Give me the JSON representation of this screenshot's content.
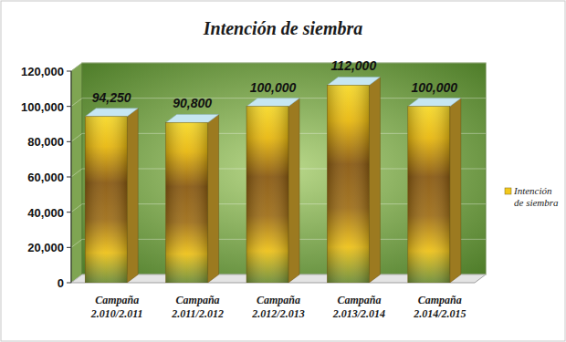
{
  "chart_data": {
    "type": "bar",
    "title": "Intención de siembra",
    "categories": [
      "Campaña 2.010/2.011",
      "Campaña 2.011/2.012",
      "Campaña 2.012/2.013",
      "Campaña 2.013/2.014",
      "Campaña 2.014/2.015"
    ],
    "series": [
      {
        "name": "Intención de siembra",
        "color": "#f2c81c",
        "values": [
          94250,
          90800,
          100000,
          112000,
          100000
        ],
        "value_labels": [
          "94,250",
          "90,800",
          "100,000",
          "112,000",
          "100,000"
        ]
      }
    ],
    "ylim": [
      0,
      120000
    ],
    "yticks": [
      0,
      {
        "value": 20000,
        "label": "20,000"
      },
      {
        "value": 40000,
        "label": "40,000"
      },
      {
        "value": 60000,
        "label": "60,000"
      },
      {
        "value": 80000,
        "label": "80,000"
      },
      {
        "value": 100000,
        "label": "100,000"
      },
      {
        "value": 120000,
        "label": "120,000"
      }
    ],
    "grid": true,
    "data_labels": true,
    "legend": "right"
  }
}
